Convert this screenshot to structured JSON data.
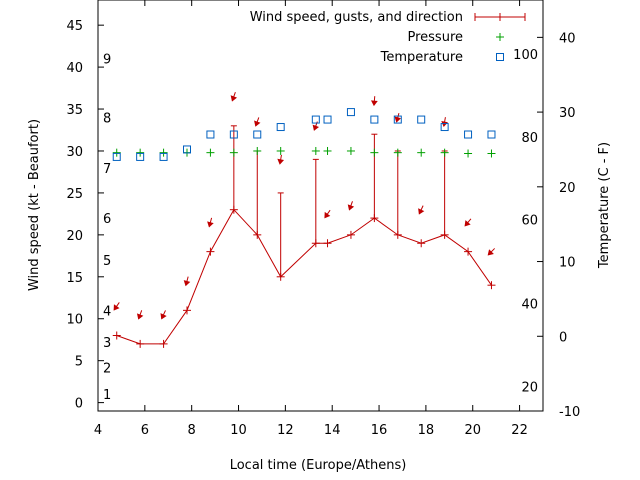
{
  "chart_data": {
    "type": "line",
    "xlabel": "Local time (Europe/Athens)",
    "ylabel": "Wind speed (kt - Beaufort)",
    "y2label": "Temperature (C - F)",
    "xlim": [
      4,
      23
    ],
    "ylim": [
      -1,
      48
    ],
    "y2lim": [
      -10,
      45
    ],
    "xticks": [
      "4",
      "6",
      "8",
      "10",
      "12",
      "14",
      "16",
      "18",
      "20",
      "22"
    ],
    "xtick_values": [
      4,
      6,
      8,
      10,
      12,
      14,
      16,
      18,
      20,
      22
    ],
    "yticks": [
      "0",
      "5",
      "10",
      "15",
      "20",
      "25",
      "30",
      "35",
      "40",
      "45"
    ],
    "ytick_values": [
      0,
      5,
      10,
      15,
      20,
      25,
      30,
      35,
      40,
      45
    ],
    "y2ticks": [
      "-10",
      "0",
      "10",
      "20",
      "30",
      "40"
    ],
    "y2tick_values": [
      -10,
      0,
      10,
      20,
      30,
      40
    ],
    "beaufort_labels": [
      {
        "text": "1",
        "y": 1
      },
      {
        "text": "2",
        "y": 4.2
      },
      {
        "text": "3",
        "y": 7.2
      },
      {
        "text": "4",
        "y": 11
      },
      {
        "text": "5",
        "y": 17
      },
      {
        "text": "6",
        "y": 22
      },
      {
        "text": "7",
        "y": 28
      },
      {
        "text": "8",
        "y": 34
      },
      {
        "text": "9",
        "y": 41
      }
    ],
    "fahrenheit_labels": [
      {
        "text": "20",
        "y2": -6.7
      },
      {
        "text": "40",
        "y2": 4.4
      },
      {
        "text": "60",
        "y2": 15.6
      },
      {
        "text": "80",
        "y2": 26.7
      },
      {
        "text": "100",
        "y2": 37.8
      }
    ],
    "legend": {
      "position": "top-right",
      "entries": [
        "Wind speed, gusts, and direction",
        "Pressure",
        "Temperature"
      ]
    },
    "colors": {
      "wind": "#c00000",
      "pressure": "#00a000",
      "temperature": "#0060c0",
      "axes": "#000000"
    },
    "series": [
      {
        "name": "Wind speed, gusts, and direction",
        "x": [
          4.8,
          5.8,
          6.8,
          7.8,
          8.8,
          9.8,
          10.8,
          11.8,
          13.3,
          13.8,
          14.8,
          15.8,
          16.8,
          17.8,
          18.8,
          19.8,
          20.8
        ],
        "speed": [
          8,
          7,
          7,
          11,
          18,
          23,
          20,
          15,
          19,
          19,
          20,
          22,
          20,
          19,
          20,
          18,
          14
        ],
        "gust": [
          null,
          null,
          null,
          null,
          null,
          33,
          30,
          25,
          29,
          null,
          null,
          32,
          30,
          null,
          30,
          null,
          null
        ],
        "arrow_y": [
          11.5,
          10.5,
          10.5,
          14.5,
          21.5,
          36.5,
          33.5,
          29,
          33,
          22.5,
          23.5,
          36,
          34,
          23,
          33.5,
          21.5,
          18
        ],
        "arrow_angle_deg": [
          35,
          20,
          25,
          15,
          15,
          20,
          20,
          10,
          20,
          35,
          20,
          5,
          15,
          25,
          10,
          40,
          45
        ]
      },
      {
        "name": "Pressure",
        "x": [
          4.8,
          5.8,
          6.8,
          7.8,
          8.8,
          9.8,
          10.8,
          11.8,
          13.3,
          13.8,
          14.8,
          15.8,
          16.8,
          17.8,
          18.8,
          19.8,
          20.8
        ],
        "values": [
          29.8,
          29.8,
          29.8,
          29.8,
          29.8,
          29.8,
          30,
          30,
          30,
          30,
          30,
          29.8,
          29.8,
          29.8,
          29.8,
          29.7,
          29.7
        ]
      },
      {
        "name": "Temperature",
        "axis": "y2",
        "x": [
          4.8,
          5.8,
          6.8,
          7.8,
          8.8,
          9.8,
          10.8,
          11.8,
          13.3,
          13.8,
          14.8,
          15.8,
          16.8,
          17.8,
          18.8,
          19.8,
          20.8
        ],
        "values": [
          24,
          24,
          24,
          25,
          27,
          27,
          27,
          28,
          29,
          29,
          30,
          29,
          29,
          29,
          28,
          27,
          27
        ]
      }
    ]
  }
}
